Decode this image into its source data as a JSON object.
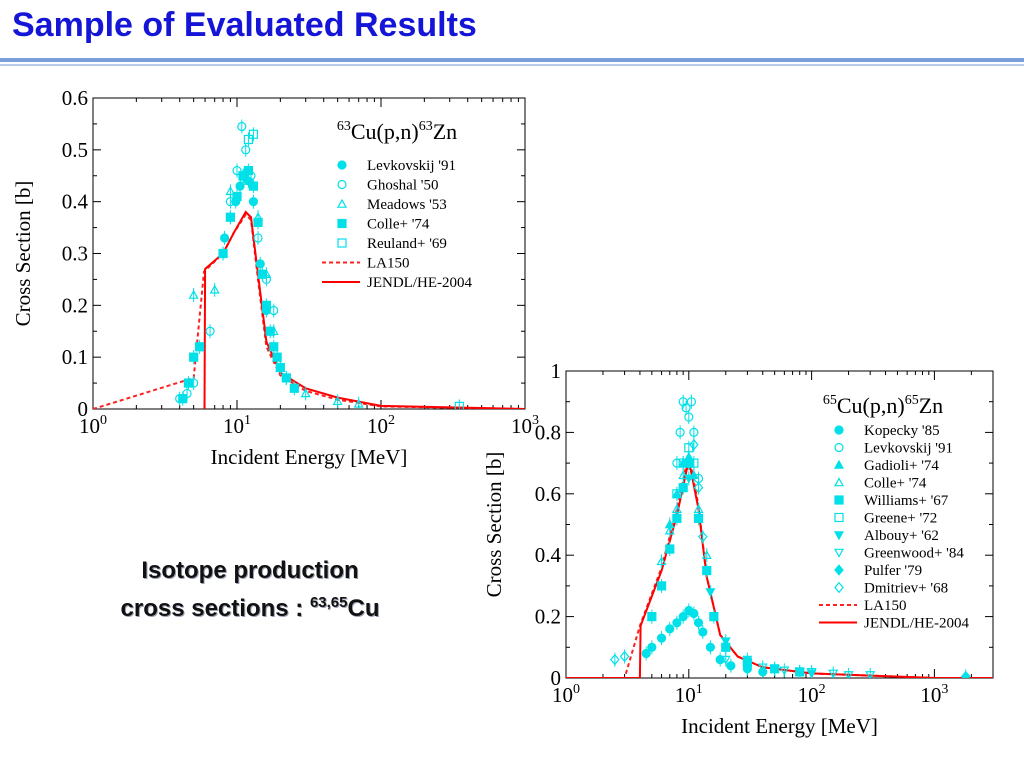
{
  "page": {
    "title": "Sample of Evaluated Results",
    "caption_line1": "Isotope production",
    "caption_line2_prefix": "cross sections : ",
    "caption_sup": "63,65",
    "caption_element": "Cu"
  },
  "chart_data": [
    {
      "type": "scatter",
      "title_parts": {
        "sup1": "63",
        "mid": "Cu(p,n)",
        "sup2": "63",
        "end": "Zn"
      },
      "xlabel": "Incident Energy [MeV]",
      "ylabel": "Cross Section [b]",
      "x_scale": "log",
      "xlim": [
        1,
        1000
      ],
      "ylim": [
        0,
        0.6
      ],
      "x_ticks": [
        1,
        10,
        100,
        1000
      ],
      "x_tick_labels": [
        {
          "base": "10",
          "exp": "0"
        },
        {
          "base": "10",
          "exp": "1"
        },
        {
          "base": "10",
          "exp": "2"
        },
        {
          "base": "10",
          "exp": "3"
        }
      ],
      "y_ticks": [
        0,
        0.1,
        0.2,
        0.3,
        0.4,
        0.5,
        0.6
      ],
      "y_tick_labels": [
        "0",
        "0.1",
        "0.2",
        "0.3",
        "0.4",
        "0.5",
        "0.6"
      ],
      "legend_position": "top-right",
      "point_color": "#00e0e8",
      "series": [
        {
          "name": "Levkovskij '91",
          "marker": "circle-filled",
          "x": [
            8.2,
            9.0,
            9.8,
            10.5,
            11.2,
            12.0,
            13.0,
            14.5,
            16.0
          ],
          "y": [
            0.33,
            0.37,
            0.4,
            0.43,
            0.45,
            0.44,
            0.4,
            0.28,
            0.19
          ]
        },
        {
          "name": "Ghoshal '50",
          "marker": "circle-open",
          "x": [
            4.0,
            4.5,
            5.0,
            6.5,
            8.0,
            9.0,
            10.0,
            10.8,
            11.5,
            12.5,
            14.0,
            16.0,
            18.0,
            22.0
          ],
          "y": [
            0.02,
            0.03,
            0.05,
            0.15,
            0.3,
            0.4,
            0.46,
            0.545,
            0.5,
            0.45,
            0.33,
            0.25,
            0.19,
            0.06
          ]
        },
        {
          "name": "Meadows '53",
          "marker": "triangle-open",
          "x": [
            5.0,
            7.0,
            9.0,
            11.0,
            14.0,
            16.0,
            18.0,
            20.0,
            30.0,
            50.0,
            70.0
          ],
          "y": [
            0.22,
            0.23,
            0.42,
            0.44,
            0.37,
            0.26,
            0.15,
            0.08,
            0.03,
            0.015,
            0.01
          ]
        },
        {
          "name": "Colle+ '74",
          "marker": "square-filled",
          "x": [
            4.2,
            4.6,
            5.0,
            5.5,
            8.0,
            9.0,
            10.0,
            11.0,
            12.0,
            13.0,
            14.0,
            15.0,
            16.0,
            17.0,
            18.0,
            19.0,
            20.0,
            22.0,
            25.0
          ],
          "y": [
            0.02,
            0.05,
            0.1,
            0.12,
            0.3,
            0.37,
            0.41,
            0.45,
            0.46,
            0.43,
            0.36,
            0.26,
            0.2,
            0.15,
            0.12,
            0.1,
            0.08,
            0.06,
            0.04
          ]
        },
        {
          "name": "Reuland+ '69",
          "marker": "square-open",
          "x": [
            12.0,
            13.0,
            350.0
          ],
          "y": [
            0.52,
            0.53,
            0.005
          ]
        },
        {
          "name": "LA150",
          "line": "dashed",
          "color": "#ff2020",
          "x": [
            1,
            5.0,
            5.9,
            8.0,
            9.5,
            11.5,
            12.5,
            14.0,
            16.0,
            20.0,
            30.0,
            50.0,
            100.0,
            1000.0
          ],
          "y": [
            0,
            0.06,
            0.265,
            0.3,
            0.34,
            0.375,
            0.365,
            0.25,
            0.12,
            0.065,
            0.035,
            0.018,
            0.005,
            0.0
          ]
        },
        {
          "name": "JENDL/HE-2004",
          "line": "solid",
          "color": "#ff0000",
          "x": [
            5.95,
            6.0,
            8.0,
            9.5,
            11.5,
            12.5,
            14.0,
            16.0,
            20.0,
            30.0,
            50.0,
            100.0,
            1000.0
          ],
          "y": [
            0,
            0.27,
            0.3,
            0.34,
            0.38,
            0.37,
            0.26,
            0.13,
            0.07,
            0.04,
            0.022,
            0.006,
            0.0
          ]
        }
      ]
    },
    {
      "type": "scatter",
      "title_parts": {
        "sup1": "65",
        "mid": "Cu(p,n)",
        "sup2": "65",
        "end": "Zn"
      },
      "xlabel": "Incident Energy [MeV]",
      "ylabel": "Cross Section [b]",
      "x_scale": "log",
      "xlim": [
        1,
        3000
      ],
      "ylim": [
        0,
        1.0
      ],
      "x_ticks": [
        1,
        10,
        100,
        1000
      ],
      "x_tick_labels": [
        {
          "base": "10",
          "exp": "0"
        },
        {
          "base": "10",
          "exp": "1"
        },
        {
          "base": "10",
          "exp": "2"
        },
        {
          "base": "10",
          "exp": "3"
        }
      ],
      "y_ticks": [
        0,
        0.2,
        0.4,
        0.6,
        0.8,
        1.0
      ],
      "y_tick_labels": [
        "0",
        "0.2",
        "0.4",
        "0.6",
        "0.8",
        "1"
      ],
      "legend_position": "top-right",
      "point_color": "#00e0e8",
      "series": [
        {
          "name": "Kopecky '85",
          "marker": "circle-filled",
          "x": [
            4.5,
            5.0,
            6.0,
            7.0,
            8.0,
            9.0,
            10.0,
            11.0,
            12.0,
            13.0,
            15.0,
            18.0,
            22.0,
            30.0,
            40.0
          ],
          "y": [
            0.08,
            0.1,
            0.13,
            0.16,
            0.18,
            0.2,
            0.22,
            0.21,
            0.18,
            0.15,
            0.1,
            0.06,
            0.04,
            0.03,
            0.02
          ]
        },
        {
          "name": "Levkovskij '91",
          "marker": "circle-open",
          "x": [
            8.0,
            8.5,
            9.0,
            9.5,
            10.0,
            10.5,
            11.0,
            12.0
          ],
          "y": [
            0.7,
            0.8,
            0.9,
            0.88,
            0.85,
            0.9,
            0.8,
            0.65
          ]
        },
        {
          "name": "Gadioli+ '74",
          "marker": "triangle-filled",
          "x": [
            7.0,
            8.0,
            9.0,
            10.0,
            11.0
          ],
          "y": [
            0.5,
            0.6,
            0.7,
            0.72,
            0.66
          ]
        },
        {
          "name": "Colle+ '74",
          "marker": "triangle-open",
          "x": [
            6.0,
            7.0,
            8.0,
            9.0,
            10.0,
            12.0,
            14.0
          ],
          "y": [
            0.38,
            0.48,
            0.55,
            0.66,
            0.7,
            0.55,
            0.4
          ]
        },
        {
          "name": "Williams+ '67",
          "marker": "square-filled",
          "x": [
            5.0,
            6.0,
            7.0,
            8.0,
            9.0,
            10.0,
            12.0,
            14.0,
            16.0,
            20.0,
            30.0,
            50.0,
            80.0
          ],
          "y": [
            0.2,
            0.3,
            0.42,
            0.52,
            0.62,
            0.7,
            0.52,
            0.35,
            0.2,
            0.1,
            0.05,
            0.03,
            0.02
          ]
        },
        {
          "name": "Greene+ '72",
          "marker": "square-open",
          "x": [
            8.0,
            9.0,
            10.0,
            11.0
          ],
          "y": [
            0.6,
            0.7,
            0.75,
            0.7
          ]
        },
        {
          "name": "Albouy+ '62",
          "marker": "triangle-down-filled",
          "x": [
            10.0,
            15.0,
            20.0,
            30.0,
            50.0,
            80.0,
            100.0
          ],
          "y": [
            0.65,
            0.28,
            0.12,
            0.06,
            0.03,
            0.02,
            0.015
          ]
        },
        {
          "name": "Greenwood+ '84",
          "marker": "triangle-down-open",
          "x": [
            20.0,
            30.0,
            40.0,
            60.0,
            100.0,
            150.0,
            200.0,
            300.0
          ],
          "y": [
            0.06,
            0.04,
            0.035,
            0.025,
            0.02,
            0.015,
            0.01,
            0.01
          ]
        },
        {
          "name": "Pulfer '79",
          "marker": "diamond-filled",
          "x": [
            1800.0
          ],
          "y": [
            0.005
          ]
        },
        {
          "name": "Dmitriev+ '68",
          "marker": "diamond-open",
          "x": [
            2.5,
            3.0,
            11.0,
            12.0,
            13.0
          ],
          "y": [
            0.06,
            0.07,
            0.76,
            0.62,
            0.46
          ]
        },
        {
          "name": "LA150",
          "line": "dashed",
          "color": "#ff2020",
          "x": [
            1,
            3.0,
            4.0,
            6.0,
            8.0,
            10.0,
            12.0,
            14.0,
            18.0,
            25.0,
            40.0,
            100.0,
            1000.0,
            3000.0
          ],
          "y": [
            0,
            0.0,
            0.17,
            0.36,
            0.55,
            0.73,
            0.56,
            0.33,
            0.14,
            0.07,
            0.035,
            0.015,
            0.0,
            0.0
          ]
        },
        {
          "name": "JENDL/HE-2004",
          "line": "solid",
          "color": "#ff0000",
          "x": [
            1,
            4.0,
            4.05,
            6.0,
            8.0,
            10.0,
            12.0,
            14.0,
            18.0,
            25.0,
            40.0,
            100.0,
            1000.0,
            3000.0
          ],
          "y": [
            0,
            0.0,
            0.17,
            0.35,
            0.53,
            0.71,
            0.55,
            0.33,
            0.14,
            0.07,
            0.035,
            0.015,
            0.0,
            0.0
          ]
        }
      ]
    }
  ]
}
